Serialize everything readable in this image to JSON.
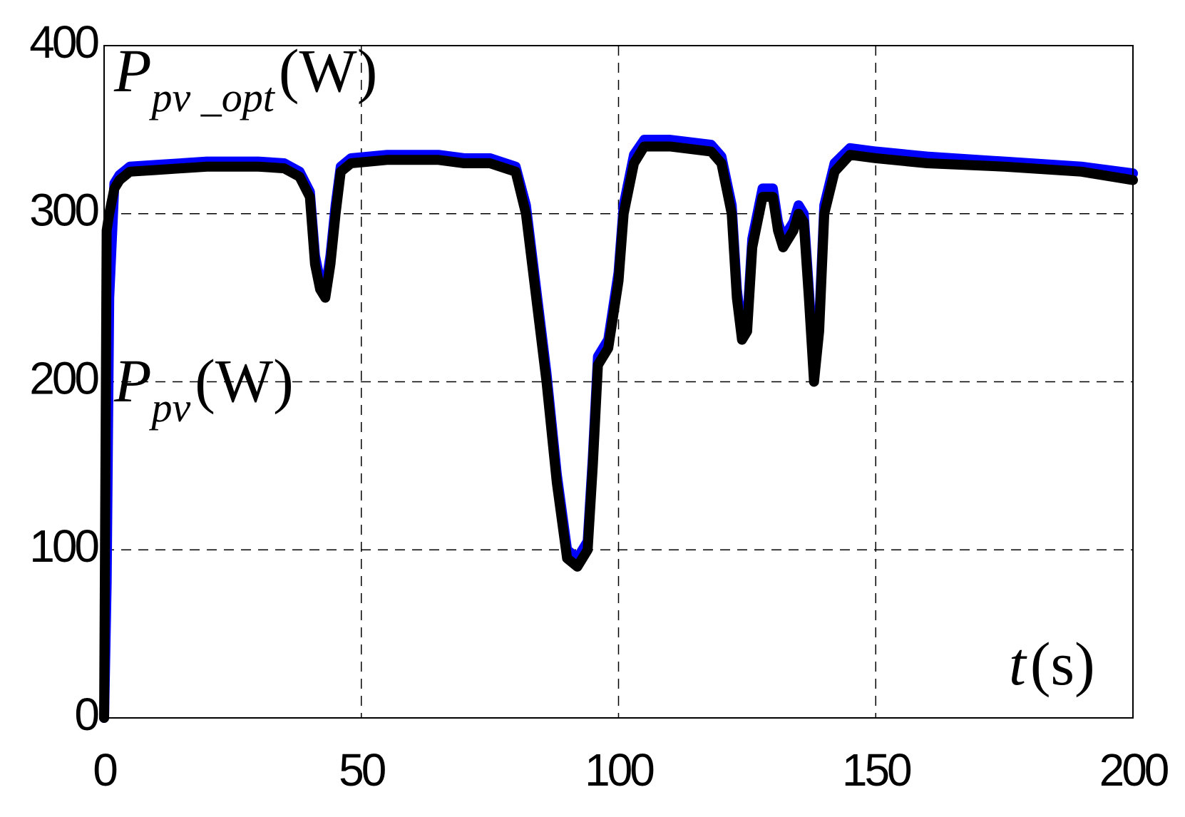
{
  "chart_data": {
    "type": "line",
    "x": [
      0,
      0.5,
      1,
      2,
      3,
      5,
      10,
      20,
      30,
      35,
      38,
      40,
      41,
      42,
      43,
      44,
      45,
      46,
      48,
      55,
      65,
      70,
      75,
      80,
      82,
      84,
      86,
      88,
      90,
      92,
      94,
      95,
      96,
      98,
      100,
      101,
      103,
      105,
      110,
      118,
      120,
      122,
      123,
      124,
      125,
      126,
      128,
      130,
      131,
      132,
      134,
      135,
      136,
      137,
      138,
      139,
      140,
      142,
      145,
      150,
      160,
      175,
      190,
      200
    ],
    "series": [
      {
        "color": "#0000ff",
        "values": [
          0,
          80,
          250,
          318,
          323,
          328,
          329,
          331,
          331,
          330,
          325,
          313,
          275,
          260,
          255,
          275,
          305,
          328,
          333,
          335,
          335,
          333,
          333,
          328,
          305,
          255,
          205,
          145,
          100,
          95,
          105,
          155,
          215,
          225,
          265,
          305,
          335,
          344,
          344,
          341,
          334,
          305,
          255,
          230,
          235,
          285,
          315,
          315,
          295,
          285,
          295,
          305,
          300,
          255,
          205,
          235,
          305,
          330,
          339,
          337,
          334,
          331,
          328,
          324
        ]
      },
      {
        "color": "#000000",
        "values": [
          0,
          290,
          300,
          315,
          320,
          325,
          326,
          328,
          328,
          327,
          322,
          310,
          270,
          255,
          250,
          270,
          300,
          325,
          330,
          332,
          332,
          330,
          330,
          325,
          300,
          250,
          200,
          140,
          95,
          90,
          100,
          150,
          210,
          220,
          260,
          300,
          330,
          340,
          340,
          337,
          330,
          300,
          250,
          225,
          230,
          280,
          310,
          310,
          290,
          280,
          290,
          300,
          295,
          250,
          200,
          230,
          300,
          325,
          335,
          333,
          330,
          328,
          325,
          320
        ]
      }
    ],
    "annotations": [
      {
        "main": "P",
        "sub": "pv _opt",
        "unit": "(W)"
      },
      {
        "main": "P",
        "sub": "pv",
        "unit": "(W)"
      },
      {
        "main": "t",
        "unit": "(s)"
      }
    ],
    "xlim": [
      0,
      200
    ],
    "xticks": [
      0,
      50,
      100,
      150,
      200
    ],
    "ylim": [
      0,
      400
    ],
    "yticks": [
      0,
      100,
      200,
      300,
      400
    ],
    "grid": true
  }
}
